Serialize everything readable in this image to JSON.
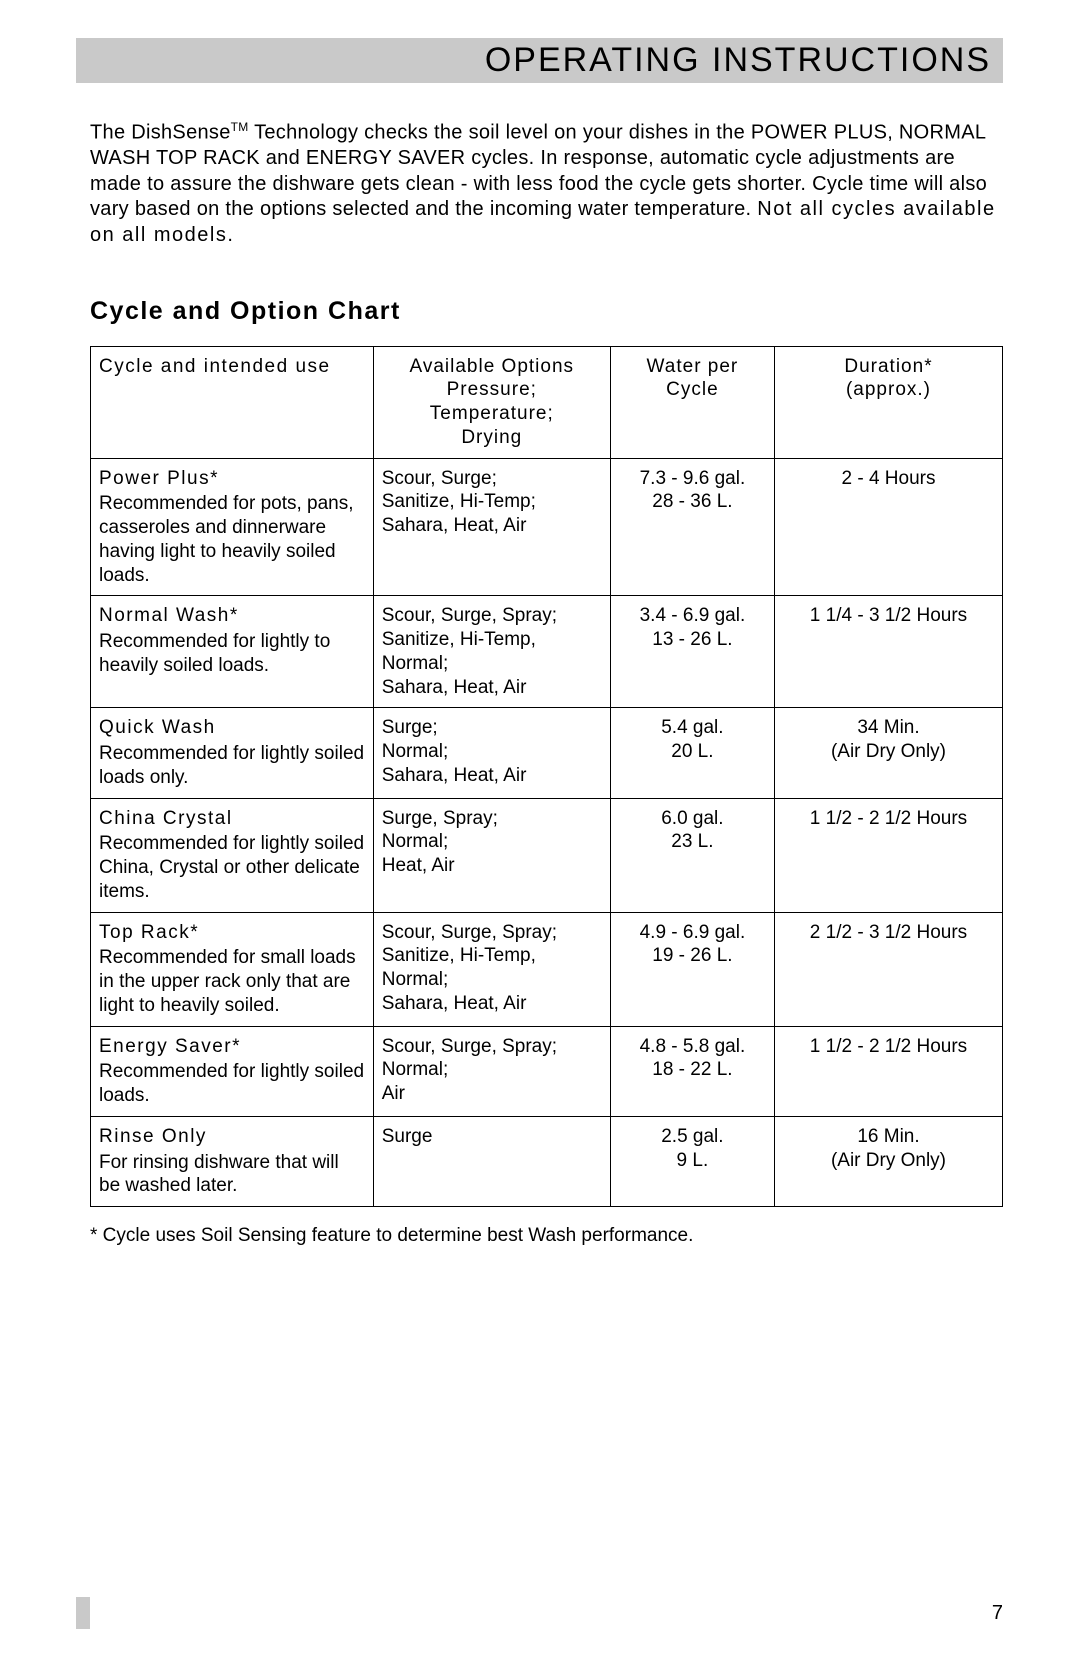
{
  "header": {
    "title": "OPERATING INSTRUCTIONS"
  },
  "intro": {
    "line1_prefix": "The DishSense",
    "line1_tm": "TM",
    "line1_rest": " Technology checks the soil level on your dishes in the POWER PLUS, NORMAL WASH TOP RACK and ENERGY SAVER cycles.  In response, automatic cycle adjustments are made to assure the dishware gets clean - with less food the cycle gets shorter.  Cycle time will also vary based on the options selected and the incoming water temperature.  ",
    "bold_tail": "Not all cycles available on all models."
  },
  "sectionTitle": "Cycle and Option Chart",
  "table": {
    "headers": {
      "col1": "Cycle and intended use",
      "col2_l1": "Available Options",
      "col2_l2": "Pressure;",
      "col2_l3": "Temperature;",
      "col2_l4": "Drying",
      "col3_l1": "Water per",
      "col3_l2": "Cycle",
      "col4_l1": "Duration*",
      "col4_l2": "(approx.)"
    },
    "rows": [
      {
        "name": "Power Plus*",
        "desc": "Recommended for pots, pans, casseroles and dinnerware having light to heavily soiled loads.",
        "options": "Scour, Surge;\nSanitize, Hi-Temp;\nSahara, Heat, Air",
        "water_gal": "7.3 - 9.6 gal.",
        "water_l": "28 - 36 L.",
        "duration": "2 - 4 Hours",
        "duration2": ""
      },
      {
        "name": "Normal Wash*",
        "desc": "Recommended for lightly to heavily soiled loads.",
        "options": "Scour, Surge, Spray;\nSanitize, Hi-Temp, Normal;\nSahara, Heat, Air",
        "water_gal": "3.4 - 6.9 gal.",
        "water_l": "13 - 26 L.",
        "duration": "1 1/4 - 3 1/2  Hours",
        "duration2": ""
      },
      {
        "name": "Quick Wash",
        "desc": "Recommended for lightly soiled loads only.",
        "options": "Surge;\nNormal;\nSahara, Heat, Air",
        "water_gal": "5.4  gal.",
        "water_l": "20 L.",
        "duration": "34 Min.",
        "duration2": "(Air Dry Only)"
      },
      {
        "name": "China Crystal",
        "desc": "Recommended for lightly soiled China, Crystal or other delicate items.",
        "options": "Surge, Spray;\nNormal;\nHeat, Air",
        "water_gal": "6.0  gal.",
        "water_l": "23 L.",
        "duration": "1 1/2 - 2 1/2  Hours",
        "duration2": ""
      },
      {
        "name": "Top Rack*",
        "desc": "Recommended for small loads in the upper rack only that are light to heavily soiled.",
        "options": "Scour, Surge, Spray;\nSanitize, Hi-Temp, Normal;\nSahara, Heat, Air",
        "water_gal": "4.9 - 6.9 gal.",
        "water_l": "19 - 26 L.",
        "duration": "2 1/2 - 3 1/2  Hours",
        "duration2": ""
      },
      {
        "name": "Energy Saver*",
        "desc": "Recommended for lightly soiled loads.",
        "options": "Scour, Surge, Spray;\nNormal;\nAir",
        "water_gal": "4.8 - 5.8 gal.",
        "water_l": "18 - 22 L.",
        "duration": "1 1/2 - 2 1/2  Hours",
        "duration2": ""
      },
      {
        "name": "Rinse Only",
        "desc": "For rinsing dishware that will be washed later.",
        "options": "Surge",
        "water_gal": "2.5  gal.",
        "water_l": "9 L.",
        "duration": "16 Min.",
        "duration2": "(Air Dry Only)"
      }
    ]
  },
  "footnote": "*  Cycle uses Soil Sensing feature to determine best Wash performance.",
  "pageNumber": "7"
}
